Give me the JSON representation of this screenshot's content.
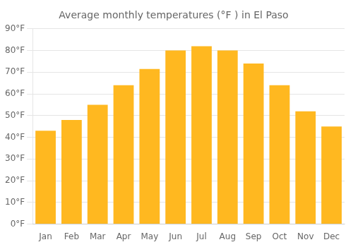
{
  "chart_data": {
    "type": "bar",
    "title": "Average monthly temperatures (°F ) in El Paso",
    "categories": [
      "Jan",
      "Feb",
      "Mar",
      "Apr",
      "May",
      "Jun",
      "Jul",
      "Aug",
      "Sep",
      "Oct",
      "Nov",
      "Dec"
    ],
    "values": [
      43,
      48,
      55,
      64,
      71.5,
      80,
      82,
      80,
      74,
      64,
      52,
      45
    ],
    "color": "#FFB820",
    "ylim": [
      0,
      90
    ],
    "yticks": [
      {
        "value": 0,
        "label": "0°F"
      },
      {
        "value": 10,
        "label": "10°F"
      },
      {
        "value": 20,
        "label": "20°F"
      },
      {
        "value": 30,
        "label": "30°F"
      },
      {
        "value": 40,
        "label": "40°F"
      },
      {
        "value": 50,
        "label": "50°F"
      },
      {
        "value": 60,
        "label": "60°F"
      },
      {
        "value": 70,
        "label": "70°F"
      },
      {
        "value": 80,
        "label": "80°F"
      },
      {
        "value": 90,
        "label": "90°F"
      }
    ],
    "grid": true
  }
}
